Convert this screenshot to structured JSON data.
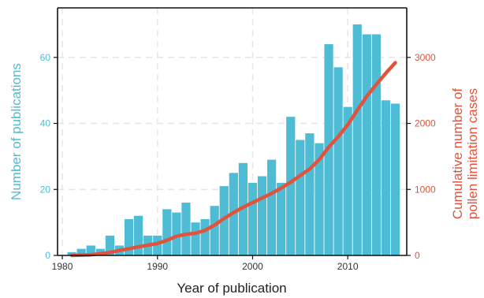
{
  "chart_data": {
    "type": "bar",
    "xlabel": "Year of publication",
    "ylabel_left_lines": [
      "Number of publications"
    ],
    "ylabel_right_lines": [
      "Cumulative number of",
      "pollen limitation cases"
    ],
    "xlim": [
      1979.5,
      2016.2
    ],
    "ylim_left": [
      0,
      75
    ],
    "ylim_right": [
      0,
      3750
    ],
    "x_ticks": [
      1980,
      1990,
      2000,
      2010
    ],
    "y_ticks_left": [
      0,
      20,
      40,
      60
    ],
    "y_ticks_right": [
      0,
      1000,
      2000,
      3000
    ],
    "grid": true,
    "colors": {
      "bars": "#4fbcd6",
      "line": "#e0533c",
      "axis": "#111111",
      "grid": "#e6e6e6"
    },
    "bar_series": {
      "x": [
        1981,
        1982,
        1983,
        1984,
        1985,
        1986,
        1987,
        1988,
        1989,
        1990,
        1991,
        1992,
        1993,
        1994,
        1995,
        1996,
        1997,
        1998,
        1999,
        2000,
        2001,
        2002,
        2003,
        2004,
        2005,
        2006,
        2007,
        2008,
        2009,
        2010,
        2011,
        2012,
        2013,
        2014,
        2015
      ],
      "values": [
        1,
        2,
        3,
        2,
        6,
        3,
        11,
        12,
        6,
        6,
        14,
        13,
        16,
        10,
        11,
        15,
        21,
        25,
        28,
        22,
        24,
        29,
        22,
        42,
        35,
        37,
        34,
        64,
        57,
        45,
        70,
        67,
        67,
        47,
        46
      ]
    },
    "line_series": {
      "x": [
        1981,
        1982,
        1983,
        1984,
        1985,
        1986,
        1987,
        1988,
        1989,
        1990,
        1991,
        1992,
        1993,
        1994,
        1995,
        1996,
        1997,
        1998,
        1999,
        2000,
        2001,
        2002,
        2003,
        2004,
        2005,
        2006,
        2007,
        2008,
        2009,
        2010,
        2011,
        2012,
        2013,
        2014,
        2015
      ],
      "values": [
        0,
        5,
        10,
        25,
        45,
        75,
        100,
        130,
        155,
        180,
        230,
        290,
        320,
        335,
        380,
        460,
        560,
        650,
        730,
        800,
        870,
        940,
        1020,
        1110,
        1210,
        1310,
        1450,
        1640,
        1800,
        1980,
        2200,
        2410,
        2590,
        2760,
        2920
      ]
    }
  }
}
